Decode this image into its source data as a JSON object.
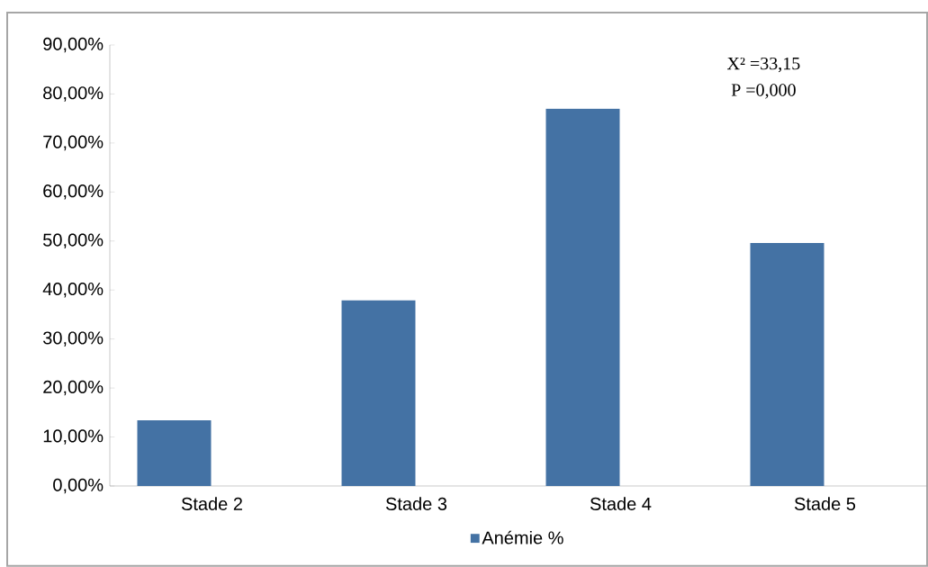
{
  "chart_data": {
    "type": "bar",
    "categories": [
      "Stade  2",
      "Stade 3",
      "Stade 4",
      "Stade 5"
    ],
    "series": [
      {
        "name": "Anémie %",
        "color": "#4472a4",
        "values": [
          13.4,
          37.9,
          77.0,
          49.6
        ]
      }
    ],
    "ylim": [
      0,
      90
    ],
    "yticks": [
      {
        "value": 0,
        "label": "0,00%"
      },
      {
        "value": 10,
        "label": "10,00%"
      },
      {
        "value": 20,
        "label": "20,00%"
      },
      {
        "value": 30,
        "label": "30,00%"
      },
      {
        "value": 40,
        "label": "40,00%"
      },
      {
        "value": 50,
        "label": "50,00%"
      },
      {
        "value": 60,
        "label": "60,00%"
      },
      {
        "value": 70,
        "label": "70,00%"
      },
      {
        "value": 80,
        "label": "80,00%"
      },
      {
        "value": 90,
        "label": "90,00%"
      }
    ],
    "annotations": [
      "X² =33,15",
      "P =0,000"
    ],
    "legend": "bottom",
    "grid": false
  }
}
